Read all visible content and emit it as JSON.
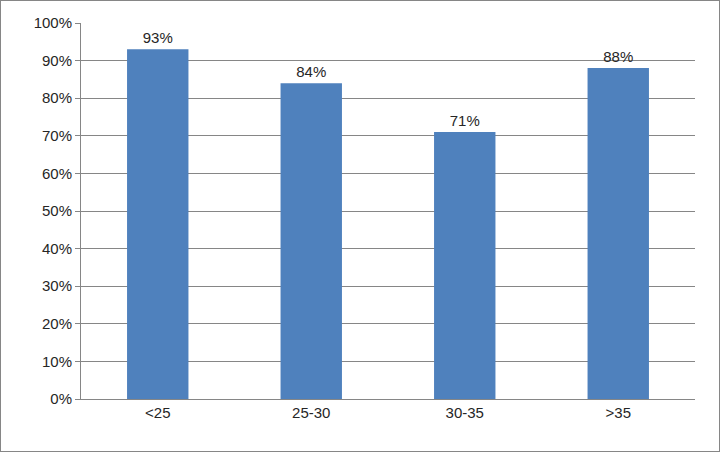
{
  "chart_data": {
    "type": "bar",
    "categories": [
      "<25",
      "25-30",
      "30-35",
      ">35"
    ],
    "values": [
      93,
      84,
      71,
      88
    ],
    "value_labels": [
      "93%",
      "84%",
      "71%",
      "88%"
    ],
    "data_labels": true,
    "color": "#4f81bd",
    "ylim": [
      0,
      100
    ],
    "yticks": [
      {
        "value": 0,
        "label": "0%"
      },
      {
        "value": 10,
        "label": "10%"
      },
      {
        "value": 20,
        "label": "20%"
      },
      {
        "value": 30,
        "label": "30%"
      },
      {
        "value": 40,
        "label": "40%"
      },
      {
        "value": 50,
        "label": "50%"
      },
      {
        "value": 60,
        "label": "60%"
      },
      {
        "value": 70,
        "label": "70%"
      },
      {
        "value": 80,
        "label": "80%"
      },
      {
        "value": 90,
        "label": "90%"
      },
      {
        "value": 100,
        "label": "100%"
      }
    ],
    "grid": true
  }
}
